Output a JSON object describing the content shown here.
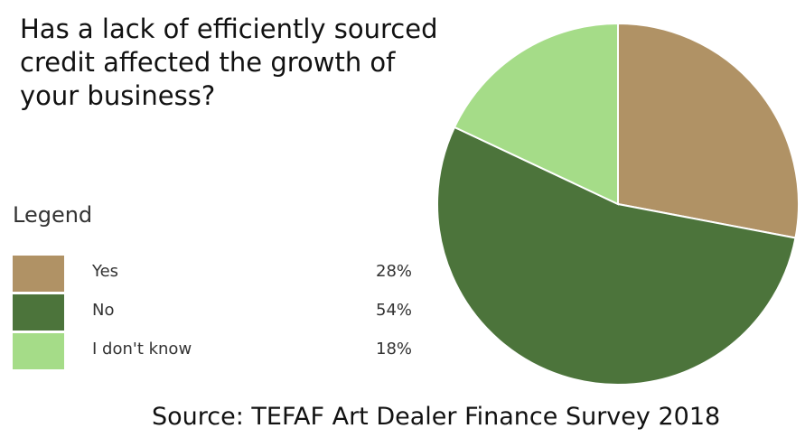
{
  "chart_data": {
    "type": "pie",
    "title": "Has a lack of efficiently sourced credit affected the growth of your business?",
    "legend_title": "Legend",
    "legend_position": "left",
    "slices": [
      {
        "label": "Yes",
        "value": 28,
        "display": "28%",
        "color": "#b09265"
      },
      {
        "label": "No",
        "value": 54,
        "display": "54%",
        "color": "#4c743b"
      },
      {
        "label": "I don't know",
        "value": 18,
        "display": "18%",
        "color": "#a5dc88"
      }
    ],
    "source": "Source: TEFAF Art Dealer Finance Survey 2018"
  }
}
